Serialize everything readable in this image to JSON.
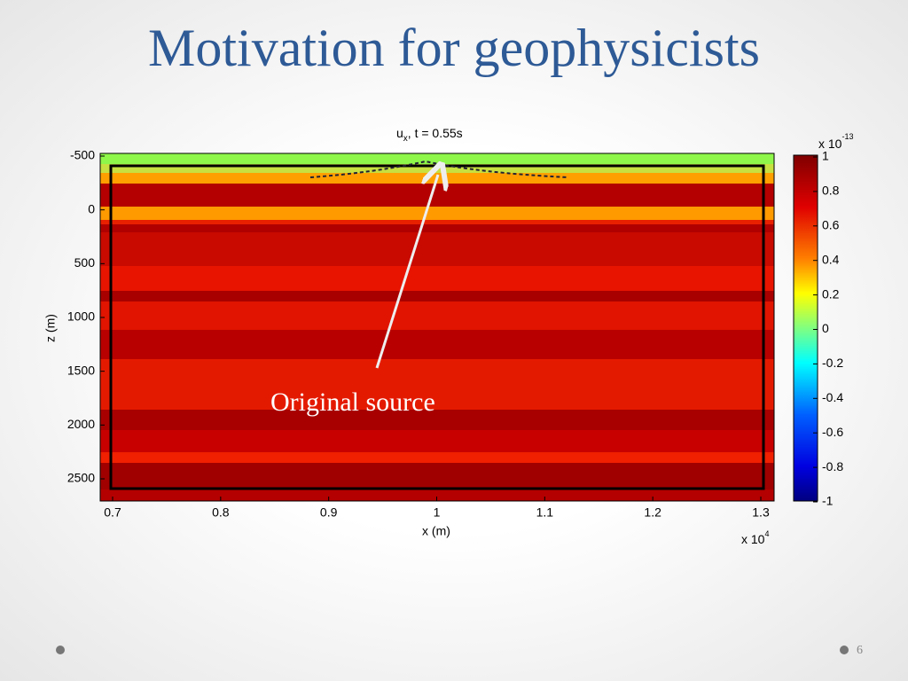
{
  "header": {
    "title": "Motivation for geophysicists"
  },
  "plot": {
    "title_main": "u",
    "title_sub": "x",
    "title_rest": ", t = 0.55s",
    "xlabel": "x (m)",
    "ylabel": "z (m)",
    "xticks": [
      0.7,
      0.8,
      0.9,
      1,
      1.1,
      1.2,
      1.3
    ],
    "x_exponent_base": "x 10",
    "x_exponent": "4",
    "yticks": [
      -500,
      0,
      500,
      1000,
      1500,
      2000,
      2500
    ],
    "colorbar_ticks": [
      1,
      0.8,
      0.6,
      0.4,
      0.2,
      0,
      -0.2,
      -0.4,
      -0.6,
      -0.8,
      -1
    ],
    "colorbar_exponent_base": "x 10",
    "colorbar_exponent": "-13",
    "annotation": "Original source"
  },
  "footer": {
    "page": "6"
  }
}
